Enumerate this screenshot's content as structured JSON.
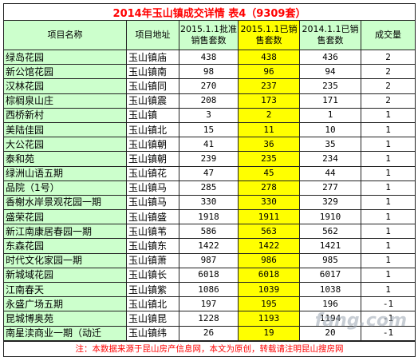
{
  "title": "2014年玉山镇成交详情 表4（9309套）",
  "headers": {
    "name": "项目名称",
    "addr": "项目地址",
    "approved": "2015.1.1批准销售套数",
    "sold2015": "2015.1.1已销售套数",
    "sold2014": "2014.1.1已销售套数",
    "change": "成交量"
  },
  "rows": [
    {
      "name": "绿岛花园",
      "addr": "玉山镇庙",
      "approved": "438",
      "sold2015": "438",
      "sold2014": "436",
      "change": "2"
    },
    {
      "name": "新公馆花园",
      "addr": "玉山镇南",
      "approved": "98",
      "sold2015": "96",
      "sold2014": "94",
      "change": "2"
    },
    {
      "name": "汉林花园",
      "addr": "玉山镇同",
      "approved": "270",
      "sold2015": "237",
      "sold2014": "235",
      "change": "2"
    },
    {
      "name": "棕榈泉山庄",
      "addr": "玉山镇震",
      "approved": "208",
      "sold2015": "173",
      "sold2014": "171",
      "change": "2"
    },
    {
      "name": "西桥新村",
      "addr": "玉山镇",
      "approved": "3",
      "sold2015": "2",
      "sold2014": "1",
      "change": "1"
    },
    {
      "name": "美陆佳园",
      "addr": "玉山镇北",
      "approved": "15",
      "sold2015": "11",
      "sold2014": "10",
      "change": "1"
    },
    {
      "name": "大公花园",
      "addr": "玉山镇朝",
      "approved": "41",
      "sold2015": "36",
      "sold2014": "35",
      "change": "1"
    },
    {
      "name": "泰和苑",
      "addr": "玉山镇朝",
      "approved": "239",
      "sold2015": "235",
      "sold2014": "234",
      "change": "1"
    },
    {
      "name": "绿洲山语五期",
      "addr": "玉山镇花",
      "approved": "47",
      "sold2015": "45",
      "sold2014": "44",
      "change": "1"
    },
    {
      "name": "品院（1号）",
      "addr": "玉山镇马",
      "approved": "285",
      "sold2015": "278",
      "sold2014": "277",
      "change": "1"
    },
    {
      "name": "香榭水岸景观花园一期",
      "addr": "玉山镇马",
      "approved": "330",
      "sold2015": "330",
      "sold2014": "329",
      "change": "1"
    },
    {
      "name": "盛荣花园",
      "addr": "玉山镇盛",
      "approved": "1918",
      "sold2015": "1911",
      "sold2014": "1910",
      "change": "1"
    },
    {
      "name": "新江南康居春园一期",
      "addr": "玉山镇苇",
      "approved": "586",
      "sold2015": "563",
      "sold2014": "562",
      "change": "1"
    },
    {
      "name": "东森花园",
      "addr": "玉山镇东",
      "approved": "1422",
      "sold2015": "1422",
      "sold2014": "1421",
      "change": "1"
    },
    {
      "name": "时代文化家园一期",
      "addr": "玉山镇萧",
      "approved": "987",
      "sold2015": "986",
      "sold2014": "985",
      "change": "1"
    },
    {
      "name": "新城域花园",
      "addr": "玉山镇长",
      "approved": "6018",
      "sold2015": "6018",
      "sold2014": "6017",
      "change": "1"
    },
    {
      "name": "江南春天",
      "addr": "玉山镇紫",
      "approved": "1086",
      "sold2015": "1039",
      "sold2014": "1038",
      "change": "1"
    },
    {
      "name": "永盛广场五期",
      "addr": "玉山镇北",
      "approved": "197",
      "sold2015": "195",
      "sold2014": "196",
      "change": "-1"
    },
    {
      "name": "昆城博奥苑",
      "addr": "玉山镇昆",
      "approved": "1228",
      "sold2015": "1193",
      "sold2014": "1194",
      "change": "-1"
    },
    {
      "name": "南星渎商业一期（动迁",
      "addr": "玉山镇纬",
      "approved": "26",
      "sold2015": "19",
      "sold2014": "20",
      "change": "-1"
    }
  ],
  "footer": "注：本数据来源于昆山房产信息网，本文为原创，转载请注明昆山搜房网",
  "watermark": "fang.com"
}
